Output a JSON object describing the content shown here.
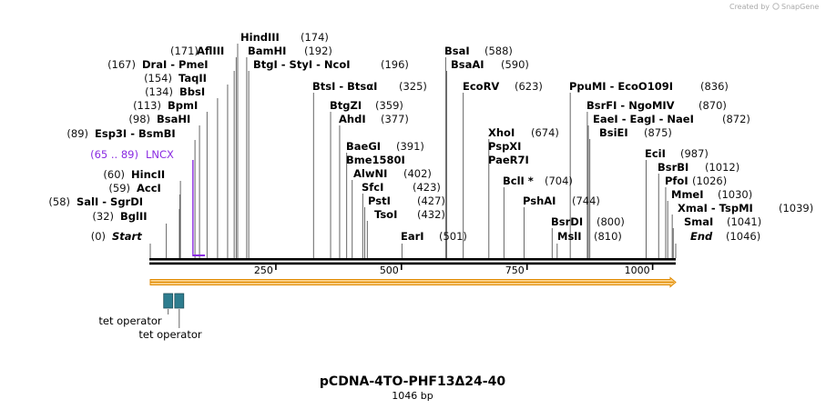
{
  "title": "pCDNA-4TO-PHF13Δ24-40",
  "length_label": "1046 bp",
  "total_length": 1046,
  "credit": {
    "prefix": "Created by",
    "brand": "SnapGene"
  },
  "colors": {
    "feature": "#8a2be2",
    "operator": "#2e7d8f",
    "arrow_fill": "#fbd28c",
    "arrow_stroke": "#e08a00"
  },
  "ruler_ticks": [
    {
      "bp": 250,
      "label": "250"
    },
    {
      "bp": 500,
      "label": "500"
    },
    {
      "bp": 750,
      "label": "750"
    },
    {
      "bp": 1000,
      "label": "1000"
    }
  ],
  "sites": [
    {
      "bp": 0,
      "pos": "(0)",
      "label": "Start",
      "style": "italic"
    },
    {
      "bp": 32,
      "pos": "(32)",
      "label": "BglII"
    },
    {
      "bp": 58,
      "pos": "(58)",
      "label": "SalI  -  SgrDI"
    },
    {
      "bp": 59,
      "pos": "(59)",
      "label": "AccI"
    },
    {
      "bp": 60,
      "pos": "(60)",
      "label": "HincII"
    },
    {
      "bp": 89,
      "pos": "(89)",
      "label": "Esp3I  -  BsmBI"
    },
    {
      "bp": 98,
      "pos": "(98)",
      "label": "BsaHI"
    },
    {
      "bp": 113,
      "pos": "(113)",
      "label": "BpmI"
    },
    {
      "bp": 134,
      "pos": "(134)",
      "label": "BbsI"
    },
    {
      "bp": 154,
      "pos": "(154)",
      "label": "TaqII"
    },
    {
      "bp": 167,
      "pos": "(167)",
      "label": "DraI  -  PmeI"
    },
    {
      "bp": 171,
      "pos": "(171)",
      "label": "AflIII"
    },
    {
      "bp": 174,
      "pos": "(174)",
      "label": "HindIII"
    },
    {
      "bp": 192,
      "pos": "(192)",
      "label": "BamHI"
    },
    {
      "bp": 196,
      "pos": "(196)",
      "label": "BtgI  -  StyI  -  NcoI"
    },
    {
      "bp": 325,
      "pos": "(325)",
      "label": "BtsI  -  BtsαI"
    },
    {
      "bp": 359,
      "pos": "(359)",
      "label": "BtgZI"
    },
    {
      "bp": 377,
      "pos": "(377)",
      "label": "AhdI"
    },
    {
      "bp": 391,
      "pos": "(391)",
      "label": "BaeGI"
    },
    {
      "bp": 391,
      "pos": "",
      "label": "Bme1580I"
    },
    {
      "bp": 402,
      "pos": "(402)",
      "label": "AlwNI"
    },
    {
      "bp": 423,
      "pos": "(423)",
      "label": "SfcI"
    },
    {
      "bp": 427,
      "pos": "(427)",
      "label": "PstI"
    },
    {
      "bp": 432,
      "pos": "(432)",
      "label": "TsoI"
    },
    {
      "bp": 501,
      "pos": "(501)",
      "label": "EarI"
    },
    {
      "bp": 588,
      "pos": "(588)",
      "label": "BsaI"
    },
    {
      "bp": 590,
      "pos": "(590)",
      "label": "BsaAI"
    },
    {
      "bp": 623,
      "pos": "(623)",
      "label": "EcoRV"
    },
    {
      "bp": 674,
      "pos": "(674)",
      "label": "XhoI"
    },
    {
      "bp": 674,
      "pos": "",
      "label": "PspXI"
    },
    {
      "bp": 674,
      "pos": "",
      "label": "PaeR7I"
    },
    {
      "bp": 704,
      "pos": "(704)",
      "label": "BclI *"
    },
    {
      "bp": 744,
      "pos": "(744)",
      "label": "PshAI"
    },
    {
      "bp": 800,
      "pos": "(800)",
      "label": "BsrDI"
    },
    {
      "bp": 810,
      "pos": "(810)",
      "label": "MslI"
    },
    {
      "bp": 836,
      "pos": "(836)",
      "label": "PpuMI  -  EcoO109I"
    },
    {
      "bp": 870,
      "pos": "(870)",
      "label": "BsrFI  -  NgoMIV"
    },
    {
      "bp": 872,
      "pos": "(872)",
      "label": "EaeI  -  EagI  -  NaeI"
    },
    {
      "bp": 875,
      "pos": "(875)",
      "label": "BsiEI"
    },
    {
      "bp": 987,
      "pos": "(987)",
      "label": "EciI"
    },
    {
      "bp": 1012,
      "pos": "(1012)",
      "label": "BsrBI"
    },
    {
      "bp": 1026,
      "pos": "(1026)",
      "label": "PfoI"
    },
    {
      "bp": 1030,
      "pos": "(1030)",
      "label": "MmeI"
    },
    {
      "bp": 1039,
      "pos": "(1039)",
      "label": "XmaI  -  TspMI"
    },
    {
      "bp": 1041,
      "pos": "(1041)",
      "label": "SmaI"
    },
    {
      "bp": 1046,
      "pos": "(1046)",
      "label": "End",
      "style": "italic"
    }
  ],
  "features": [
    {
      "name": "LNCX",
      "pos": "(65 .. 89)",
      "start": 65,
      "end": 89
    }
  ],
  "operators": [
    {
      "label": "tet operator",
      "start": 14,
      "end": 32
    },
    {
      "label": "tet operator",
      "start": 36,
      "end": 54
    }
  ]
}
